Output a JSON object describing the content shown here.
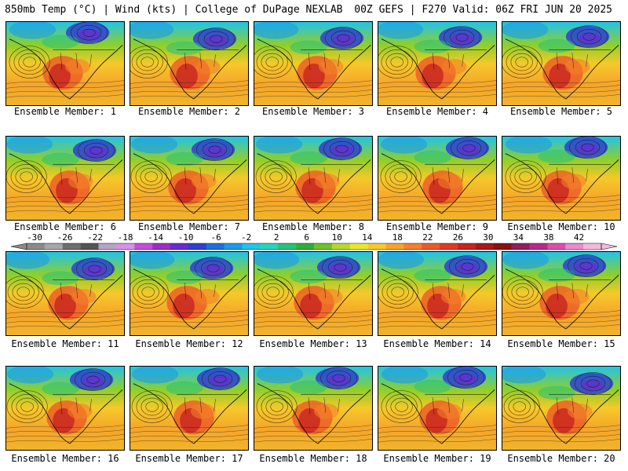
{
  "header": {
    "left": "850mb Temp (°C) | Wind (kts) | College of DuPage NEXLAB",
    "right": "00Z GEFS | F270 Valid: 06Z FRI JUN 20 2025"
  },
  "member_prefix": "Ensemble Member:",
  "members": [
    1,
    2,
    3,
    4,
    5,
    6,
    7,
    8,
    9,
    10,
    11,
    12,
    13,
    14,
    15,
    16,
    17,
    18,
    19,
    20
  ],
  "colorbar": {
    "ticks": [
      "-30",
      "-26",
      "-22",
      "-18",
      "-14",
      "-10",
      "-6",
      "-2",
      "2",
      "6",
      "10",
      "14",
      "18",
      "22",
      "26",
      "30",
      "34",
      "38",
      "42"
    ],
    "colors": [
      "#8a8a8a",
      "#a6a6a6",
      "#6e6e6e",
      "#555555",
      "#b5a4c8",
      "#d692e8",
      "#c44ddb",
      "#9b2fc5",
      "#6a2bd1",
      "#2f3fcf",
      "#1e6fe0",
      "#1a9be6",
      "#22c3e8",
      "#22d6c0",
      "#26c27a",
      "#2fae3a",
      "#6fc12b",
      "#b5d82a",
      "#e8e82b",
      "#f5c92a",
      "#f5a52a",
      "#f2812a",
      "#ec5a27",
      "#e03a24",
      "#c72420",
      "#a81818",
      "#8a1010",
      "#8e1f5f",
      "#b52a8a",
      "#d84fb0",
      "#ea89cc",
      "#f3b8e0"
    ]
  }
}
